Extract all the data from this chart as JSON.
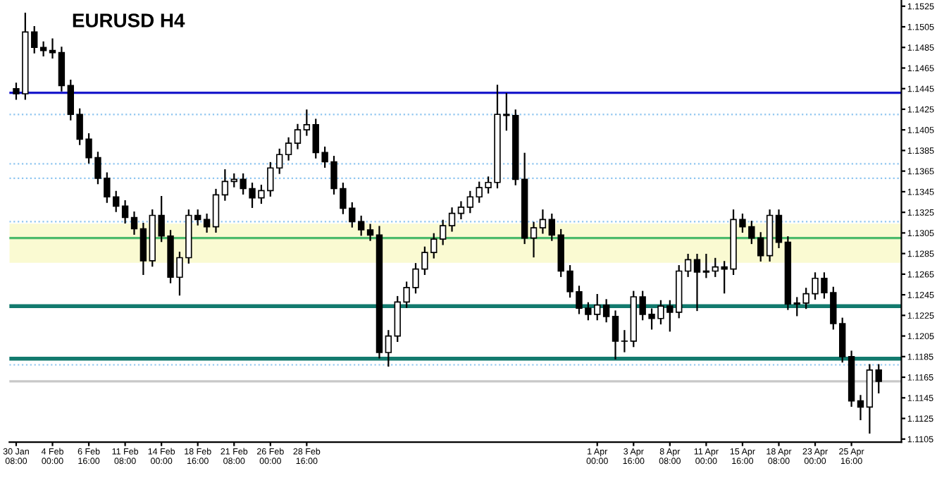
{
  "chart_data": {
    "type": "candlestick",
    "title": "EURUSD H4",
    "color": "#000000",
    "categories": [
      "30 Jan 08:00",
      null,
      null,
      null,
      "4 Feb 00:00",
      null,
      null,
      null,
      "6 Feb 16:00",
      null,
      null,
      null,
      "11 Feb 08:00",
      null,
      null,
      null,
      "14 Feb 00:00",
      null,
      null,
      null,
      "18 Feb 16:00",
      null,
      null,
      null,
      "21 Feb 08:00",
      null,
      null,
      null,
      "26 Feb 00:00",
      null,
      null,
      null,
      "28 Feb 16:00",
      null,
      null,
      null,
      null,
      null,
      null,
      null,
      null,
      null,
      null,
      null,
      null,
      null,
      null,
      null,
      null,
      null,
      null,
      null,
      null,
      null,
      null,
      null,
      null,
      null,
      null,
      null,
      null,
      null,
      null,
      null,
      "1 Apr 00:00",
      null,
      null,
      null,
      "3 Apr 16:00",
      null,
      null,
      null,
      "8 Apr 08:00",
      null,
      null,
      null,
      "11 Apr 00:00",
      null,
      null,
      null,
      "15 Apr 16:00",
      null,
      null,
      null,
      "18 Apr 08:00",
      null,
      null,
      null,
      "23 Apr 00:00",
      null,
      null,
      null,
      "25 Apr 16:00",
      null,
      null,
      null
    ],
    "ohlc": [
      [
        1.1445,
        1.145,
        1.1435,
        1.144
      ],
      [
        1.144,
        1.1518,
        1.1435,
        1.15
      ],
      [
        1.15,
        1.1505,
        1.148,
        1.1485
      ],
      [
        1.1485,
        1.149,
        1.1477,
        1.1482
      ],
      [
        1.1482,
        1.1493,
        1.1475,
        1.148
      ],
      [
        1.148,
        1.1485,
        1.1443,
        1.1448
      ],
      [
        1.1448,
        1.1453,
        1.1415,
        1.142
      ],
      [
        1.142,
        1.1425,
        1.1391,
        1.1396
      ],
      [
        1.1396,
        1.1401,
        1.1373,
        1.1378
      ],
      [
        1.1378,
        1.1383,
        1.1353,
        1.1358
      ],
      [
        1.1358,
        1.1363,
        1.1335,
        1.134
      ],
      [
        1.134,
        1.1345,
        1.1326,
        1.1331
      ],
      [
        1.1331,
        1.1336,
        1.1315,
        1.132
      ],
      [
        1.132,
        1.1325,
        1.1304,
        1.1309
      ],
      [
        1.1309,
        1.1314,
        1.1265,
        1.1278
      ],
      [
        1.1278,
        1.1327,
        1.1273,
        1.1322
      ],
      [
        1.1322,
        1.134,
        1.1297,
        1.1302
      ],
      [
        1.1302,
        1.1307,
        1.1257,
        1.1262
      ],
      [
        1.1262,
        1.1286,
        1.1245,
        1.1281
      ],
      [
        1.1281,
        1.1327,
        1.1276,
        1.1322
      ],
      [
        1.1322,
        1.1327,
        1.1313,
        1.1318
      ],
      [
        1.1318,
        1.1323,
        1.1306,
        1.1311
      ],
      [
        1.1311,
        1.1347,
        1.1306,
        1.1342
      ],
      [
        1.1342,
        1.1366,
        1.1337,
        1.1355
      ],
      [
        1.1355,
        1.1362,
        1.135,
        1.1357
      ],
      [
        1.1357,
        1.1362,
        1.1343,
        1.1348
      ],
      [
        1.1348,
        1.1353,
        1.133,
        1.1339
      ],
      [
        1.1339,
        1.1351,
        1.1334,
        1.1346
      ],
      [
        1.1346,
        1.1373,
        1.1341,
        1.1368
      ],
      [
        1.1368,
        1.1386,
        1.1363,
        1.1381
      ],
      [
        1.1381,
        1.1397,
        1.1376,
        1.1392
      ],
      [
        1.1392,
        1.141,
        1.1387,
        1.1405
      ],
      [
        1.1405,
        1.1424,
        1.14,
        1.141
      ],
      [
        1.141,
        1.1415,
        1.1378,
        1.1383
      ],
      [
        1.1383,
        1.1388,
        1.1369,
        1.1374
      ],
      [
        1.1374,
        1.1379,
        1.1343,
        1.1348
      ],
      [
        1.1348,
        1.1353,
        1.1324,
        1.1329
      ],
      [
        1.1329,
        1.1334,
        1.1311,
        1.1316
      ],
      [
        1.1316,
        1.1321,
        1.1303,
        1.1308
      ],
      [
        1.1308,
        1.1313,
        1.1298,
        1.1303
      ],
      [
        1.1303,
        1.1311,
        1.1184,
        1.1189
      ],
      [
        1.1189,
        1.121,
        1.1176,
        1.1205
      ],
      [
        1.1205,
        1.1243,
        1.12,
        1.1238
      ],
      [
        1.1238,
        1.1257,
        1.1233,
        1.1252
      ],
      [
        1.1252,
        1.1275,
        1.1247,
        1.127
      ],
      [
        1.127,
        1.1291,
        1.1265,
        1.1286
      ],
      [
        1.1286,
        1.1304,
        1.1281,
        1.1299
      ],
      [
        1.1299,
        1.1317,
        1.1294,
        1.1312
      ],
      [
        1.1312,
        1.1329,
        1.1307,
        1.1324
      ],
      [
        1.1324,
        1.1335,
        1.1319,
        1.133
      ],
      [
        1.133,
        1.1345,
        1.1325,
        1.134
      ],
      [
        1.134,
        1.1354,
        1.1335,
        1.1349
      ],
      [
        1.1349,
        1.1359,
        1.1344,
        1.1354
      ],
      [
        1.1354,
        1.1448,
        1.1349,
        1.142
      ],
      [
        1.142,
        1.144,
        1.1405,
        1.1419
      ],
      [
        1.1419,
        1.1424,
        1.1352,
        1.1357
      ],
      [
        1.1357,
        1.1382,
        1.1295,
        1.13
      ],
      [
        1.13,
        1.1315,
        1.1282,
        1.131
      ],
      [
        1.131,
        1.1327,
        1.1305,
        1.1318
      ],
      [
        1.1318,
        1.1323,
        1.1298,
        1.1303
      ],
      [
        1.1303,
        1.1308,
        1.1263,
        1.1268
      ],
      [
        1.1268,
        1.1273,
        1.1243,
        1.1248
      ],
      [
        1.1248,
        1.1253,
        1.1227,
        1.1232
      ],
      [
        1.1232,
        1.1237,
        1.1221,
        1.1226
      ],
      [
        1.1226,
        1.1245,
        1.1221,
        1.1235
      ],
      [
        1.1235,
        1.124,
        1.1219,
        1.1224
      ],
      [
        1.1224,
        1.1229,
        1.1183,
        1.12
      ],
      [
        1.12,
        1.121,
        1.119,
        1.12
      ],
      [
        1.12,
        1.1248,
        1.1195,
        1.1243
      ],
      [
        1.1243,
        1.1248,
        1.1221,
        1.1226
      ],
      [
        1.1226,
        1.1231,
        1.1212,
        1.1222
      ],
      [
        1.1222,
        1.1239,
        1.1217,
        1.1234
      ],
      [
        1.1234,
        1.1239,
        1.121,
        1.1228
      ],
      [
        1.1228,
        1.1273,
        1.1223,
        1.1268
      ],
      [
        1.1268,
        1.1284,
        1.1263,
        1.1279
      ],
      [
        1.1279,
        1.1284,
        1.123,
        1.1267
      ],
      [
        1.1267,
        1.1284,
        1.1262,
        1.1268
      ],
      [
        1.1268,
        1.128,
        1.1263,
        1.1272
      ],
      [
        1.1272,
        1.1277,
        1.1247,
        1.127
      ],
      [
        1.127,
        1.1327,
        1.1265,
        1.1318
      ],
      [
        1.1318,
        1.1323,
        1.1306,
        1.1311
      ],
      [
        1.1311,
        1.1316,
        1.1295,
        1.13
      ],
      [
        1.13,
        1.1305,
        1.1278,
        1.1283
      ],
      [
        1.1283,
        1.1327,
        1.1278,
        1.1322
      ],
      [
        1.1322,
        1.1327,
        1.1291,
        1.1296
      ],
      [
        1.1296,
        1.1301,
        1.1231,
        1.1236
      ],
      [
        1.1236,
        1.1242,
        1.1225,
        1.1237
      ],
      [
        1.1237,
        1.1251,
        1.1232,
        1.1246
      ],
      [
        1.1246,
        1.1266,
        1.1241,
        1.1261
      ],
      [
        1.1261,
        1.1266,
        1.1242,
        1.1247
      ],
      [
        1.1247,
        1.1252,
        1.1212,
        1.1217
      ],
      [
        1.1217,
        1.1222,
        1.118,
        1.1185
      ],
      [
        1.1185,
        1.119,
        1.1137,
        1.1142
      ],
      [
        1.1142,
        1.1147,
        1.1124,
        1.1136
      ],
      [
        1.1136,
        1.1177,
        1.1111,
        1.1172
      ],
      [
        1.1172,
        1.1177,
        1.115,
        1.1161
      ]
    ],
    "ylim": [
      1.1102,
      1.1531
    ],
    "yticks": [
      {
        "value": 1.1105,
        "label": "1.1105"
      },
      {
        "value": 1.1125,
        "label": "1.1125"
      },
      {
        "value": 1.1145,
        "label": "1.1145"
      },
      {
        "value": 1.1165,
        "label": "1.1165"
      },
      {
        "value": 1.1185,
        "label": "1.1185"
      },
      {
        "value": 1.1205,
        "label": "1.1205"
      },
      {
        "value": 1.1225,
        "label": "1.1225"
      },
      {
        "value": 1.1245,
        "label": "1.1245"
      },
      {
        "value": 1.1265,
        "label": "1.1265"
      },
      {
        "value": 1.1285,
        "label": "1.1285"
      },
      {
        "value": 1.1305,
        "label": "1.1305"
      },
      {
        "value": 1.1325,
        "label": "1.1325"
      },
      {
        "value": 1.1345,
        "label": "1.1345"
      },
      {
        "value": 1.1365,
        "label": "1.1365"
      },
      {
        "value": 1.1385,
        "label": "1.1385"
      },
      {
        "value": 1.1405,
        "label": "1.1405"
      },
      {
        "value": 1.1425,
        "label": "1.1425"
      },
      {
        "value": 1.1445,
        "label": "1.1445"
      },
      {
        "value": 1.1465,
        "label": "1.1465"
      },
      {
        "value": 1.1485,
        "label": "1.1485"
      },
      {
        "value": 1.1505,
        "label": "1.1505"
      },
      {
        "value": 1.1525,
        "label": "1.1525"
      }
    ],
    "bands": [
      {
        "axis": "y",
        "from": 1.1276,
        "to": 1.1314,
        "color": "#fafad2"
      }
    ],
    "ref_lines": [
      {
        "axis": "y",
        "value": 1.1441,
        "color": "#1a1acc",
        "line_style": "solid"
      },
      {
        "axis": "y",
        "value": 1.13,
        "color": "#4cbb6c",
        "line_style": "solid"
      },
      {
        "axis": "y",
        "value": 1.1234,
        "color": "#127a6e",
        "line_style": "solid"
      },
      {
        "axis": "y",
        "value": 1.1183,
        "color": "#127a6e",
        "line_style": "solid"
      },
      {
        "axis": "y",
        "value": 1.142,
        "color": "#8ec5f0",
        "line_style": "dotted"
      },
      {
        "axis": "y",
        "value": 1.1372,
        "color": "#8ec5f0",
        "line_style": "dotted"
      },
      {
        "axis": "y",
        "value": 1.1358,
        "color": "#8ec5f0",
        "line_style": "dotted"
      },
      {
        "axis": "y",
        "value": 1.1316,
        "color": "#8ec5f0",
        "line_style": "dotted"
      },
      {
        "axis": "y",
        "value": 1.1177,
        "color": "#8ec5f0",
        "line_style": "dotted"
      },
      {
        "axis": "y",
        "value": 1.1161,
        "color": "#c8c8c8",
        "line_style": "solid"
      }
    ],
    "grid": false,
    "legend": false
  }
}
